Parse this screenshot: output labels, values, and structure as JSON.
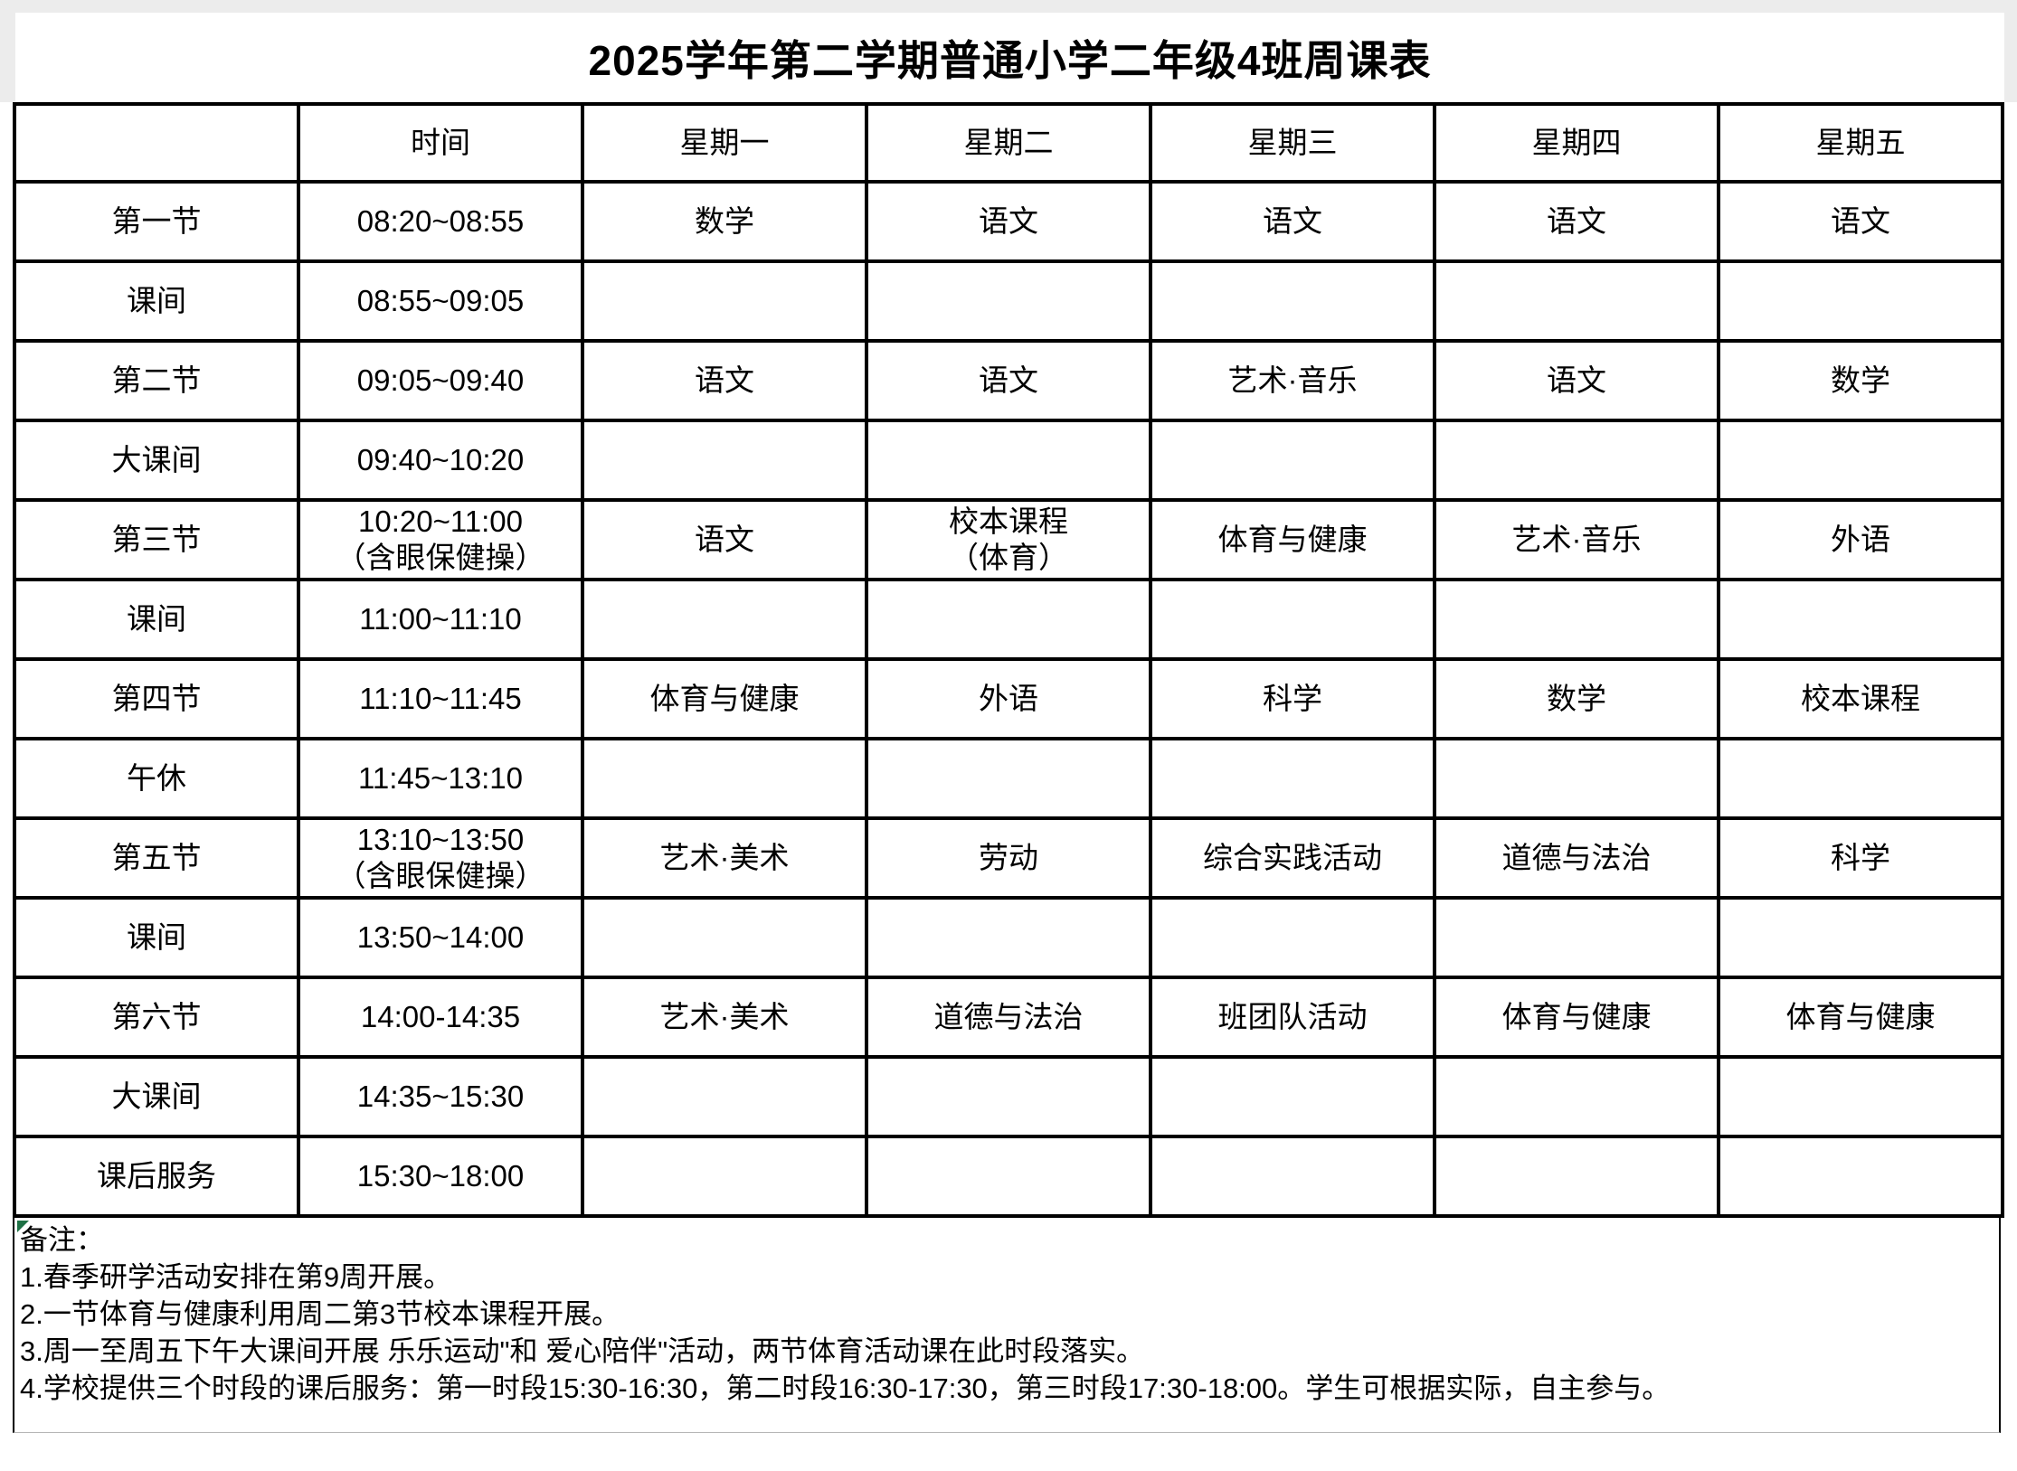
{
  "title": "2025学年第二学期普通小学二年级4班周课表",
  "table": {
    "columns": [
      "",
      "时间",
      "星期一",
      "星期二",
      "星期三",
      "星期四",
      "星期五"
    ],
    "rows": [
      {
        "label": "第一节",
        "time": "08:20~08:55",
        "cells": [
          "数学",
          "语文",
          "语文",
          "语文",
          "语文"
        ]
      },
      {
        "label": "课间",
        "time": "08:55~09:05",
        "cells": [
          "",
          "",
          "",
          "",
          ""
        ]
      },
      {
        "label": "第二节",
        "time": "09:05~09:40",
        "cells": [
          "语文",
          "语文",
          "艺术·音乐",
          "语文",
          "数学"
        ]
      },
      {
        "label": "大课间",
        "time": "09:40~10:20",
        "cells": [
          "",
          "",
          "",
          "",
          ""
        ]
      },
      {
        "label": "第三节",
        "time": "10:20~11:00\n（含眼保健操）",
        "cells": [
          "语文",
          "校本课程\n（体育）",
          "体育与健康",
          "艺术·音乐",
          "外语"
        ]
      },
      {
        "label": "课间",
        "time": "11:00~11:10",
        "cells": [
          "",
          "",
          "",
          "",
          ""
        ]
      },
      {
        "label": "第四节",
        "time": "11:10~11:45",
        "cells": [
          "体育与健康",
          "外语",
          "科学",
          "数学",
          "校本课程"
        ]
      },
      {
        "label": "午休",
        "time": "11:45~13:10",
        "cells": [
          "",
          "",
          "",
          "",
          ""
        ]
      },
      {
        "label": "第五节",
        "time": "13:10~13:50\n（含眼保健操）",
        "cells": [
          "艺术·美术",
          "劳动",
          "综合实践活动",
          "道德与法治",
          "科学"
        ]
      },
      {
        "label": "课间",
        "time": "13:50~14:00",
        "cells": [
          "",
          "",
          "",
          "",
          ""
        ]
      },
      {
        "label": "第六节",
        "time": "14:00-14:35",
        "cells": [
          "艺术·美术",
          "道德与法治",
          "班团队活动",
          "体育与健康",
          "体育与健康"
        ]
      },
      {
        "label": "大课间",
        "time": "14:35~15:30",
        "cells": [
          "",
          "",
          "",
          "",
          ""
        ]
      },
      {
        "label": "课后服务",
        "time": "15:30~18:00",
        "cells": [
          "",
          "",
          "",
          "",
          ""
        ]
      }
    ]
  },
  "notes": {
    "heading": "备注：",
    "items": [
      "1.春季研学活动安排在第9周开展。",
      "2.一节体育与健康利用周二第3节校本课程开展。",
      "3.周一至周五下午大课间开展 乐乐运动\"和 爱心陪伴\"活动，两节体育活动课在此时段落实。",
      "4.学校提供三个时段的课后服务：第一时段15:30-16:30，第二时段16:30-17:30，第三时段17:30-18:00。学生可根据实际，自主参与。"
    ]
  },
  "colors": {
    "grid": "#000000",
    "page_margin": "#ececec",
    "note_marker_green": "#1e7145",
    "text": "#000000",
    "background": "#ffffff"
  }
}
